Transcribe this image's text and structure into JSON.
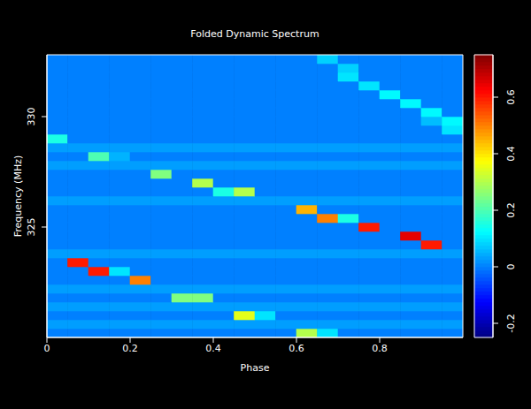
{
  "chart_data": {
    "type": "heatmap",
    "title": "Folded Dynamic Spectrum",
    "x_label": "Phase",
    "y_label": "Frequency (MHz)",
    "xlim": [
      0,
      1
    ],
    "ylim": [
      320,
      332.8
    ],
    "xticks": [
      0,
      0.2,
      0.4,
      0.6,
      0.8
    ],
    "yticks": [
      325,
      330
    ],
    "x_bins": [
      0,
      0.05,
      0.1,
      0.15,
      0.2,
      0.25,
      0.3,
      0.35,
      0.4,
      0.45,
      0.5,
      0.55,
      0.6,
      0.65,
      0.7,
      0.75,
      0.8,
      0.85,
      0.9,
      0.95,
      1
    ],
    "y_bins": [
      320,
      320.4,
      320.8,
      321.2,
      321.6,
      322,
      322.4,
      322.8,
      323.2,
      323.6,
      324,
      324.4,
      324.8,
      325.2,
      325.6,
      326,
      326.4,
      326.8,
      327.2,
      327.6,
      328,
      328.4,
      328.8,
      329.2,
      329.6,
      330,
      330.4,
      330.8,
      331.2,
      331.6,
      332,
      332.4,
      332.8
    ],
    "z": [
      [
        0,
        0,
        0,
        0,
        0,
        0,
        0,
        0,
        0,
        0,
        0,
        0,
        0.3,
        0.1,
        0,
        0,
        0,
        0,
        0,
        0
      ],
      [
        0.03,
        0.03,
        0.03,
        0.03,
        0.03,
        0.03,
        0.03,
        0.03,
        0.03,
        0.03,
        0.03,
        0.03,
        0.03,
        0.03,
        0.03,
        0.03,
        0.03,
        0.03,
        0.03,
        0.03
      ],
      [
        0,
        0,
        0,
        0,
        0,
        0,
        0,
        0,
        0,
        0.35,
        0.1,
        0,
        0,
        0,
        0,
        0,
        0,
        0,
        0,
        0
      ],
      [
        0.03,
        0.03,
        0.03,
        0.03,
        0.03,
        0.03,
        0.03,
        0.03,
        0.03,
        0.03,
        0.03,
        0.03,
        0.03,
        0.03,
        0.03,
        0.03,
        0.03,
        0.03,
        0.03,
        0.03
      ],
      [
        0,
        0,
        0,
        0,
        0,
        0,
        0.25,
        0.25,
        0,
        0,
        0,
        0,
        0,
        0,
        0,
        0,
        0,
        0,
        0,
        0
      ],
      [
        0.03,
        0.03,
        0.03,
        0.03,
        0.03,
        0.03,
        0.03,
        0.03,
        0.03,
        0.03,
        0.03,
        0.03,
        0.03,
        0.03,
        0.03,
        0.03,
        0.03,
        0.03,
        0.03,
        0.03
      ],
      [
        0,
        0,
        0,
        0,
        0.5,
        0,
        0,
        0,
        0,
        0,
        0,
        0,
        0,
        0,
        0,
        0,
        0,
        0,
        0,
        0
      ],
      [
        0,
        0,
        0.6,
        0.1,
        0,
        0,
        0,
        0,
        0,
        0,
        0,
        0,
        0,
        0,
        0,
        0,
        0,
        0,
        0,
        0
      ],
      [
        0,
        0.6,
        0,
        0,
        0,
        0,
        0,
        0,
        0,
        0,
        0,
        0,
        0,
        0,
        0,
        0,
        0,
        0,
        0,
        0
      ],
      [
        0.03,
        0.03,
        0.03,
        0.03,
        0.03,
        0.03,
        0.03,
        0.03,
        0.03,
        0.03,
        0.03,
        0.03,
        0.03,
        0.03,
        0.03,
        0.03,
        0.03,
        0.03,
        0.03,
        0.03
      ],
      [
        0,
        0,
        0,
        0,
        0,
        0,
        0,
        0,
        0,
        0,
        0,
        0,
        0,
        0,
        0,
        0,
        0,
        0,
        0.6,
        0
      ],
      [
        0,
        0,
        0,
        0,
        0,
        0,
        0,
        0,
        0,
        0,
        0,
        0,
        0,
        0,
        0,
        0,
        0,
        0.65,
        0,
        0
      ],
      [
        0,
        0,
        0,
        0,
        0,
        0,
        0,
        0,
        0,
        0,
        0,
        0,
        0,
        0,
        0,
        0.6,
        0,
        0,
        0,
        0
      ],
      [
        0,
        0,
        0,
        0,
        0,
        0,
        0,
        0,
        0,
        0,
        0,
        0,
        0,
        0.5,
        0.15,
        0,
        0,
        0,
        0,
        0
      ],
      [
        0,
        0,
        0,
        0,
        0,
        0,
        0,
        0,
        0,
        0,
        0,
        0,
        0.45,
        0,
        0,
        0,
        0,
        0,
        0,
        0
      ],
      [
        0.03,
        0.03,
        0.03,
        0.03,
        0.03,
        0.03,
        0.03,
        0.03,
        0.03,
        0.03,
        0.03,
        0.03,
        0.03,
        0.03,
        0.03,
        0.03,
        0.03,
        0.03,
        0.03,
        0.03
      ],
      [
        0,
        0,
        0,
        0,
        0,
        0,
        0,
        0,
        0.15,
        0.3,
        0,
        0,
        0,
        0,
        0,
        0,
        0,
        0,
        0,
        0
      ],
      [
        0,
        0,
        0,
        0,
        0,
        0,
        0,
        0.3,
        0,
        0,
        0,
        0,
        0,
        0,
        0,
        0,
        0,
        0,
        0,
        0
      ],
      [
        0,
        0,
        0,
        0,
        0,
        0.25,
        0,
        0,
        0,
        0,
        0,
        0,
        0,
        0,
        0,
        0,
        0,
        0,
        0,
        0
      ],
      [
        0.03,
        0.03,
        0.03,
        0.03,
        0.03,
        0.03,
        0.03,
        0.03,
        0.03,
        0.03,
        0.03,
        0.03,
        0.03,
        0.03,
        0.03,
        0.03,
        0.03,
        0.03,
        0.03,
        0.03
      ],
      [
        0,
        0,
        0.2,
        0.05,
        0,
        0,
        0,
        0,
        0,
        0,
        0,
        0,
        0,
        0,
        0,
        0,
        0,
        0,
        0,
        0
      ],
      [
        0.03,
        0.03,
        0.03,
        0.03,
        0.03,
        0.03,
        0.03,
        0.03,
        0.03,
        0.03,
        0.03,
        0.03,
        0.03,
        0.03,
        0.03,
        0.03,
        0.03,
        0.03,
        0.03,
        0.03
      ],
      [
        0.15,
        0,
        0,
        0,
        0,
        0,
        0,
        0,
        0,
        0,
        0,
        0,
        0,
        0,
        0,
        0,
        0,
        0,
        0,
        0
      ],
      [
        0,
        0,
        0,
        0,
        0,
        0,
        0,
        0,
        0,
        0,
        0,
        0,
        0,
        0,
        0,
        0,
        0,
        0,
        0,
        0.1
      ],
      [
        0,
        0,
        0,
        0,
        0,
        0,
        0,
        0,
        0,
        0,
        0,
        0,
        0,
        0,
        0,
        0,
        0,
        0,
        0.06,
        0.12
      ],
      [
        0,
        0,
        0,
        0,
        0,
        0,
        0,
        0,
        0,
        0,
        0,
        0,
        0,
        0,
        0,
        0,
        0,
        0,
        0.12,
        0
      ],
      [
        0,
        0,
        0,
        0,
        0,
        0,
        0,
        0,
        0,
        0,
        0,
        0,
        0,
        0,
        0,
        0,
        0,
        0.12,
        0,
        0
      ],
      [
        0,
        0,
        0,
        0,
        0,
        0,
        0,
        0,
        0,
        0,
        0,
        0,
        0,
        0,
        0,
        0,
        0.12,
        0,
        0,
        0
      ],
      [
        0,
        0,
        0,
        0,
        0,
        0,
        0,
        0,
        0,
        0,
        0,
        0,
        0,
        0,
        0,
        0.1,
        0,
        0,
        0,
        0
      ],
      [
        0,
        0,
        0,
        0,
        0,
        0,
        0,
        0,
        0,
        0,
        0,
        0,
        0,
        0,
        0.1,
        0,
        0,
        0,
        0,
        0
      ],
      [
        0,
        0,
        0,
        0,
        0,
        0,
        0,
        0,
        0,
        0,
        0,
        0,
        0,
        0,
        0.08,
        0,
        0,
        0,
        0,
        0
      ],
      [
        0,
        0,
        0,
        0,
        0,
        0,
        0,
        0,
        0,
        0,
        0,
        0,
        0,
        0.08,
        0,
        0,
        0,
        0,
        0,
        0
      ]
    ],
    "colorbar": {
      "range": [
        -0.25,
        0.75
      ],
      "ticks": [
        -0.2,
        0,
        0.2,
        0.4,
        0.6
      ]
    }
  }
}
